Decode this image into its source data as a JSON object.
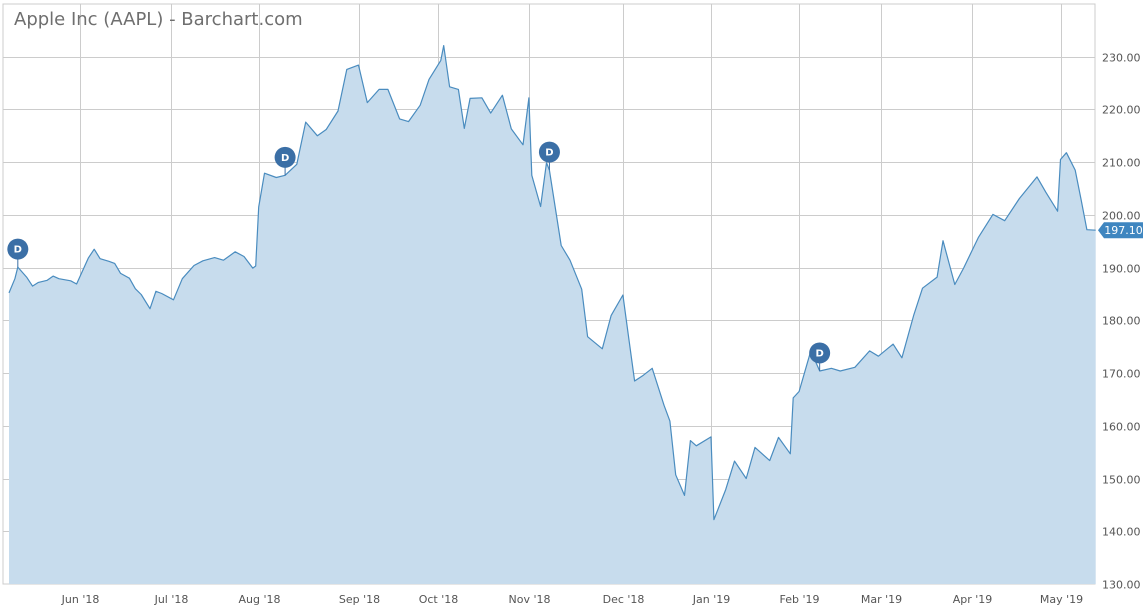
{
  "title": "Apple Inc (AAPL) - Barchart.com",
  "colors": {
    "area_fill": "#c7dced",
    "line": "#4a8cbf",
    "grid": "#cccccc",
    "badge": "#3b6fa6",
    "last_value_bg": "#3f86c0"
  },
  "chart_data": {
    "type": "area",
    "title": "Apple Inc (AAPL) - Barchart.com",
    "xlabel": "",
    "ylabel": "",
    "ylim": [
      130,
      235
    ],
    "yticks": [
      "130.00",
      "140.00",
      "150.00",
      "160.00",
      "170.00",
      "180.00",
      "190.00",
      "200.00",
      "210.00",
      "220.00",
      "230.00"
    ],
    "xticks": [
      {
        "date": "2018-06-01",
        "label": "Jun '18"
      },
      {
        "date": "2018-07-02",
        "label": "Jul '18"
      },
      {
        "date": "2018-08-01",
        "label": "Aug '18"
      },
      {
        "date": "2018-09-04",
        "label": "Sep '18"
      },
      {
        "date": "2018-10-01",
        "label": "Oct '18"
      },
      {
        "date": "2018-11-01",
        "label": "Nov '18"
      },
      {
        "date": "2018-12-03",
        "label": "Dec '18"
      },
      {
        "date": "2019-01-02",
        "label": "Jan '19"
      },
      {
        "date": "2019-02-01",
        "label": "Feb '19"
      },
      {
        "date": "2019-03-01",
        "label": "Mar '19"
      },
      {
        "date": "2019-04-01",
        "label": "Apr '19"
      },
      {
        "date": "2019-05-01",
        "label": "May '19"
      }
    ],
    "grid": true,
    "last_value": "197.10",
    "dividend_marker_label": "D",
    "dividends": [
      "2018-05-11",
      "2018-08-10",
      "2018-11-08",
      "2019-02-08"
    ],
    "series": [
      {
        "x": [
          "2018-05-08",
          "2018-05-10",
          "2018-05-11",
          "2018-05-14",
          "2018-05-16",
          "2018-05-18",
          "2018-05-21",
          "2018-05-23",
          "2018-05-25",
          "2018-05-29",
          "2018-05-31",
          "2018-06-04",
          "2018-06-06",
          "2018-06-08",
          "2018-06-11",
          "2018-06-13",
          "2018-06-15",
          "2018-06-18",
          "2018-06-20",
          "2018-06-22",
          "2018-06-25",
          "2018-06-27",
          "2018-06-29",
          "2018-07-03",
          "2018-07-06",
          "2018-07-10",
          "2018-07-13",
          "2018-07-17",
          "2018-07-20",
          "2018-07-24",
          "2018-07-27",
          "2018-07-30",
          "2018-07-31",
          "2018-08-01",
          "2018-08-03",
          "2018-08-07",
          "2018-08-10",
          "2018-08-14",
          "2018-08-17",
          "2018-08-21",
          "2018-08-24",
          "2018-08-28",
          "2018-08-31",
          "2018-09-04",
          "2018-09-07",
          "2018-09-11",
          "2018-09-14",
          "2018-09-18",
          "2018-09-21",
          "2018-09-25",
          "2018-09-28",
          "2018-10-02",
          "2018-10-03",
          "2018-10-05",
          "2018-10-08",
          "2018-10-10",
          "2018-10-12",
          "2018-10-16",
          "2018-10-19",
          "2018-10-23",
          "2018-10-26",
          "2018-10-30",
          "2018-11-01",
          "2018-11-02",
          "2018-11-05",
          "2018-11-07",
          "2018-11-08",
          "2018-11-12",
          "2018-11-15",
          "2018-11-19",
          "2018-11-21",
          "2018-11-26",
          "2018-11-29",
          "2018-12-03",
          "2018-12-05",
          "2018-12-07",
          "2018-12-10",
          "2018-12-13",
          "2018-12-17",
          "2018-12-19",
          "2018-12-21",
          "2018-12-24",
          "2018-12-26",
          "2018-12-28",
          "2019-01-02",
          "2019-01-03",
          "2019-01-07",
          "2019-01-10",
          "2019-01-14",
          "2019-01-17",
          "2019-01-22",
          "2019-01-25",
          "2019-01-29",
          "2019-01-30",
          "2019-02-01",
          "2019-02-05",
          "2019-02-08",
          "2019-02-12",
          "2019-02-15",
          "2019-02-20",
          "2019-02-25",
          "2019-02-28",
          "2019-03-05",
          "2019-03-08",
          "2019-03-12",
          "2019-03-15",
          "2019-03-20",
          "2019-03-22",
          "2019-03-26",
          "2019-03-29",
          "2019-04-03",
          "2019-04-08",
          "2019-04-12",
          "2019-04-17",
          "2019-04-23",
          "2019-04-26",
          "2019-04-30",
          "2019-05-01",
          "2019-05-03",
          "2019-05-06",
          "2019-05-08",
          "2019-05-10",
          "2019-05-13"
        ],
        "values": [
          185.2,
          187.9,
          190.1,
          188.2,
          186.5,
          187.2,
          187.6,
          188.4,
          187.9,
          187.5,
          186.9,
          191.8,
          193.5,
          191.7,
          191.2,
          190.8,
          188.9,
          188.0,
          186.0,
          184.9,
          182.2,
          185.5,
          185.1,
          183.9,
          187.9,
          190.4,
          191.3,
          191.9,
          191.4,
          193.0,
          192.1,
          189.9,
          190.3,
          201.5,
          207.9,
          207.1,
          207.5,
          209.6,
          217.6,
          215.0,
          216.2,
          219.7,
          227.6,
          228.4,
          221.3,
          223.8,
          223.8,
          218.2,
          217.7,
          220.8,
          225.7,
          229.3,
          232.1,
          224.3,
          223.8,
          216.4,
          222.1,
          222.2,
          219.3,
          222.7,
          216.3,
          213.3,
          222.2,
          207.5,
          201.6,
          209.9,
          208.5,
          194.2,
          191.4,
          185.9,
          176.9,
          174.6,
          180.9,
          184.8,
          176.7,
          168.5,
          169.6,
          170.9,
          163.9,
          160.9,
          150.7,
          146.8,
          157.2,
          156.2,
          157.9,
          142.2,
          147.9,
          153.3,
          150.0,
          155.9,
          153.4,
          157.8,
          154.7,
          165.3,
          166.5,
          174.2,
          170.4,
          170.9,
          170.4,
          171.1,
          174.2,
          173.2,
          175.5,
          172.9,
          180.9,
          186.1,
          188.2,
          195.1,
          186.8,
          189.9,
          195.7,
          200.1,
          198.9,
          203.1,
          207.2,
          204.3,
          200.7,
          210.5,
          211.8,
          208.5,
          202.9,
          197.2,
          197.1
        ]
      }
    ]
  }
}
